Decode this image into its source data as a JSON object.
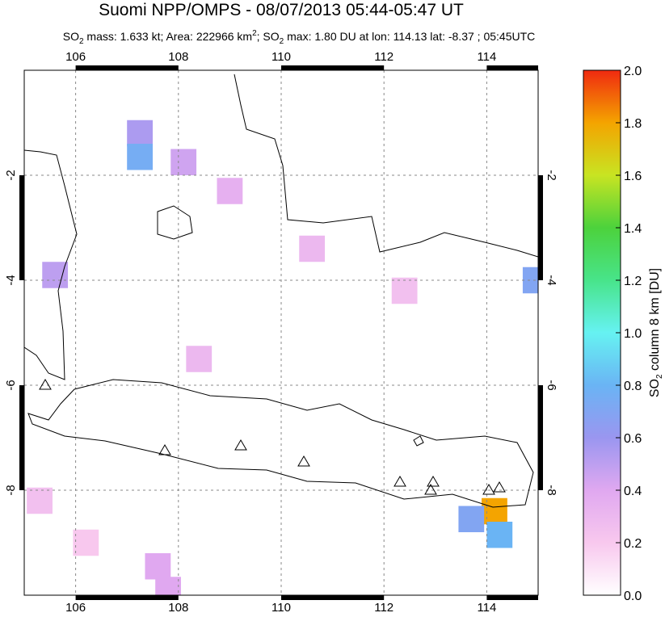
{
  "chart_data": {
    "type": "map",
    "title": "Suomi NPP/OMPS - 08/07/2013 05:44-05:47 UT",
    "subtitle_parts": [
      "SO",
      "2",
      " mass: 1.633 kt; Area: 222966 km",
      "2",
      "; SO",
      "2",
      " max: 1.80 DU at lon: 114.13 lat: -8.37 ; 05:45UTC"
    ],
    "xlim": [
      105,
      115
    ],
    "ylim": [
      -10,
      0
    ],
    "xticks": [
      106,
      108,
      110,
      112,
      114
    ],
    "yticks": [
      -2,
      -4,
      -6,
      -8
    ],
    "grid": true,
    "cells": {
      "lon": [
        114.15,
        113.7,
        114.25,
        107.25,
        107.25,
        105.6,
        114.95,
        108.1,
        107.6,
        107.8,
        109.0,
        105.3,
        108.4,
        110.6,
        112.4,
        106.2
      ],
      "lat": [
        -8.4,
        -8.55,
        -8.85,
        -1.2,
        -1.65,
        -3.9,
        -4.0,
        -1.75,
        -9.45,
        -9.9,
        -2.3,
        -8.2,
        -5.5,
        -3.4,
        -4.2,
        -9.0
      ],
      "values": [
        1.8,
        0.7,
        0.8,
        0.55,
        0.75,
        0.5,
        0.7,
        0.45,
        0.4,
        0.4,
        0.35,
        0.25,
        0.3,
        0.3,
        0.25,
        0.2
      ]
    },
    "colorbar": {
      "label_parts": [
        "SO",
        "2",
        " column 8 km [DU]"
      ],
      "clim": [
        0,
        2
      ],
      "colors": [
        "#ffffff",
        "#f8c8ee",
        "#e0a8f0",
        "#9a96f0",
        "#6ab4f4",
        "#66f2f2",
        "#48e48a",
        "#4cd23c",
        "#c8e422",
        "#f4a400",
        "#f02a10"
      ],
      "ticks": [
        {
          "value": 0,
          "label": "0.0"
        },
        {
          "value": 0.2,
          "label": "0.2"
        },
        {
          "value": 0.4,
          "label": "0.4"
        },
        {
          "value": 0.6,
          "label": "0.6"
        },
        {
          "value": 0.8,
          "label": "0.8"
        },
        {
          "value": 1.0,
          "label": "1.0"
        },
        {
          "value": 1.2,
          "label": "1.2"
        },
        {
          "value": 1.4,
          "label": "1.4"
        },
        {
          "value": 1.6,
          "label": "1.6"
        },
        {
          "value": 1.8,
          "label": "1.8"
        },
        {
          "value": 2.0,
          "label": "2.0"
        }
      ]
    }
  }
}
